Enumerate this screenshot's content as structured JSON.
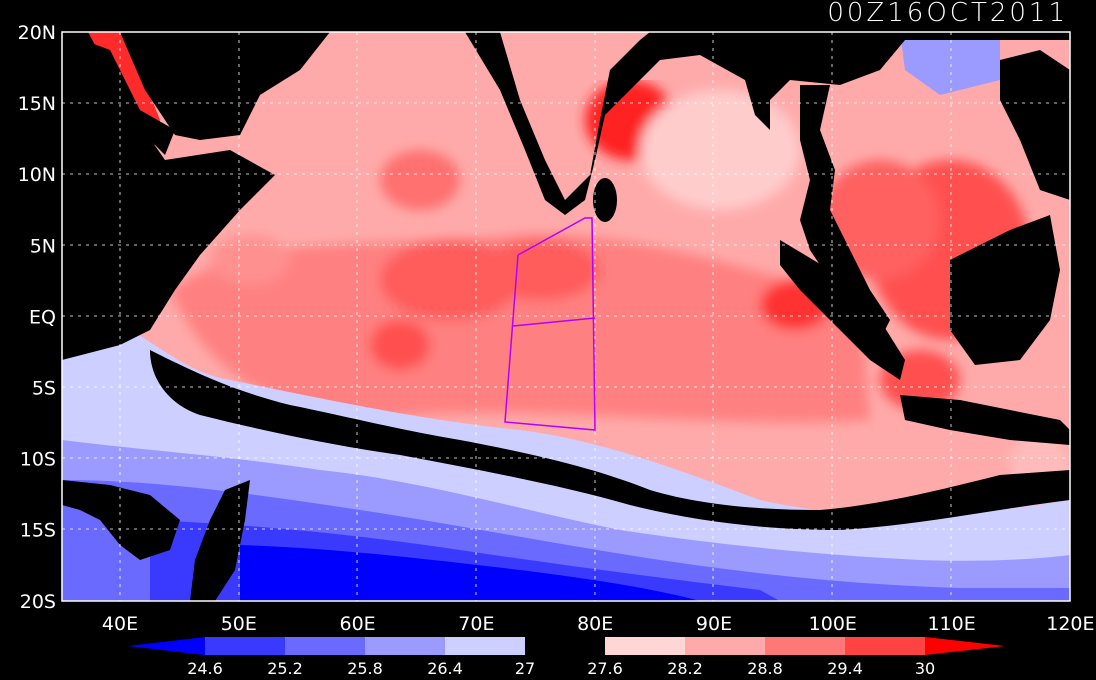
{
  "title": "00Z16OCT2011",
  "lat_labels": [
    "20N",
    "15N",
    "10N",
    "5N",
    "EQ",
    "5S",
    "10S",
    "15S",
    "20S"
  ],
  "lon_labels": [
    "40E",
    "50E",
    "60E",
    "70E",
    "80E",
    "90E",
    "100E",
    "110E",
    "120E"
  ],
  "colorbar": {
    "ticks": [
      "24.6",
      "25.2",
      "25.8",
      "26.4",
      "27",
      "27.6",
      "28.2",
      "28.8",
      "29.4",
      "30"
    ],
    "colors": [
      "#0000ff",
      "#3a3aff",
      "#6a6aff",
      "#9a9aff",
      "#cccfff",
      "#000000",
      "#ffd6d6",
      "#ffaaaa",
      "#ff7878",
      "#ff4242",
      "#ff0000"
    ]
  },
  "colors": {
    "land": "#000000",
    "grid": "#ffffff",
    "box": "#b400ff"
  }
}
